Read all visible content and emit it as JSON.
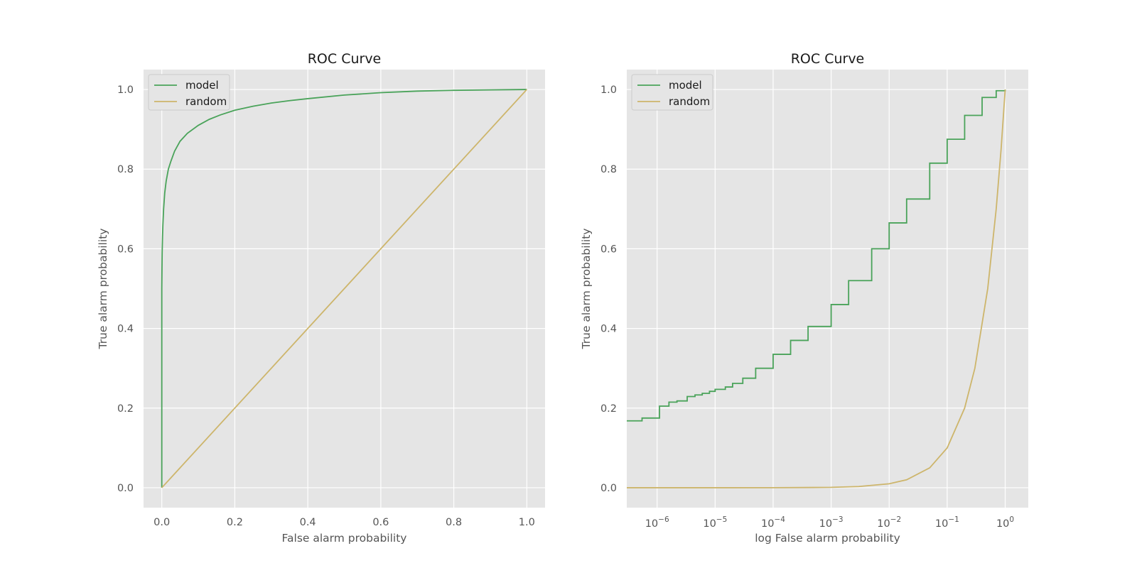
{
  "colors": {
    "axes_bg": "#e5e5e5",
    "grid": "#ffffff",
    "model": "#4aa35a",
    "random": "#cdb56b",
    "legend_bg": "#e5e5e5",
    "legend_border": "#cccccc"
  },
  "chart_data": [
    {
      "type": "line",
      "title": "ROC Curve",
      "xlabel": "False alarm probability",
      "ylabel": "True alarm probability",
      "xscale": "linear",
      "xlim": [
        -0.05,
        1.05
      ],
      "ylim": [
        -0.05,
        1.05
      ],
      "xticks": [
        0.0,
        0.2,
        0.4,
        0.6,
        0.8,
        1.0
      ],
      "xtick_labels": [
        "0.0",
        "0.2",
        "0.4",
        "0.6",
        "0.8",
        "1.0"
      ],
      "yticks": [
        0.0,
        0.2,
        0.4,
        0.6,
        0.8,
        1.0
      ],
      "ytick_labels": [
        "0.0",
        "0.2",
        "0.4",
        "0.6",
        "0.8",
        "1.0"
      ],
      "grid": true,
      "legend_position": "top-left",
      "series": [
        {
          "name": "model",
          "color_key": "model",
          "x": [
            0,
            0,
            0.0005,
            0.001,
            0.002,
            0.003,
            0.005,
            0.008,
            0.012,
            0.018,
            0.025,
            0.035,
            0.05,
            0.07,
            0.1,
            0.13,
            0.16,
            0.2,
            0.25,
            0.3,
            0.35,
            0.4,
            0.5,
            0.6,
            0.7,
            0.8,
            0.9,
            1.0
          ],
          "y": [
            0,
            0.5,
            0.55,
            0.59,
            0.63,
            0.66,
            0.7,
            0.74,
            0.77,
            0.8,
            0.82,
            0.845,
            0.87,
            0.89,
            0.91,
            0.925,
            0.936,
            0.948,
            0.958,
            0.966,
            0.972,
            0.977,
            0.986,
            0.992,
            0.996,
            0.998,
            0.999,
            1.0
          ]
        },
        {
          "name": "random",
          "color_key": "random",
          "x": [
            0,
            1.0
          ],
          "y": [
            0,
            1.0
          ]
        }
      ]
    },
    {
      "type": "line",
      "title": "ROC Curve",
      "xlabel": "log False alarm probability",
      "ylabel": "True alarm probability",
      "xscale": "log",
      "xlim": [
        3e-07,
        2.5
      ],
      "ylim": [
        -0.05,
        1.05
      ],
      "xticks": [
        1e-06,
        1e-05,
        0.0001,
        0.001,
        0.01,
        0.1,
        1
      ],
      "xtick_bases": [
        "10",
        "10",
        "10",
        "10",
        "10",
        "10",
        "10"
      ],
      "xtick_exponents": [
        "−6",
        "−5",
        "−4",
        "−3",
        "−2",
        "−1",
        "0"
      ],
      "yticks": [
        0.0,
        0.2,
        0.4,
        0.6,
        0.8,
        1.0
      ],
      "ytick_labels": [
        "0.0",
        "0.2",
        "0.4",
        "0.6",
        "0.8",
        "1.0"
      ],
      "grid": true,
      "legend_position": "top-left",
      "series": [
        {
          "name": "model",
          "color_key": "model",
          "step": true,
          "x": [
            3e-07,
            5.5e-07,
            1.1e-06,
            1.6e-06,
            2.2e-06,
            3.3e-06,
            4.5e-06,
            6e-06,
            8e-06,
            1e-05,
            1.5e-05,
            2e-05,
            3e-05,
            5e-05,
            0.0001,
            0.0002,
            0.0004,
            0.001,
            0.002,
            0.005,
            0.01,
            0.02,
            0.05,
            0.1,
            0.2,
            0.4,
            0.7,
            1.0
          ],
          "y": [
            0.168,
            0.175,
            0.205,
            0.215,
            0.218,
            0.229,
            0.233,
            0.237,
            0.242,
            0.247,
            0.253,
            0.262,
            0.275,
            0.3,
            0.335,
            0.37,
            0.405,
            0.46,
            0.52,
            0.6,
            0.665,
            0.725,
            0.815,
            0.875,
            0.935,
            0.98,
            0.997,
            1.0
          ]
        },
        {
          "name": "random",
          "color_key": "random",
          "x": [
            3e-07,
            1e-06,
            1e-05,
            0.0001,
            0.001,
            0.003,
            0.01,
            0.02,
            0.05,
            0.1,
            0.2,
            0.3,
            0.5,
            0.7,
            0.85,
            1.0
          ],
          "y": [
            3e-07,
            1e-06,
            1e-05,
            0.0001,
            0.001,
            0.003,
            0.01,
            0.02,
            0.05,
            0.1,
            0.2,
            0.3,
            0.5,
            0.7,
            0.85,
            1.0
          ]
        }
      ]
    }
  ]
}
